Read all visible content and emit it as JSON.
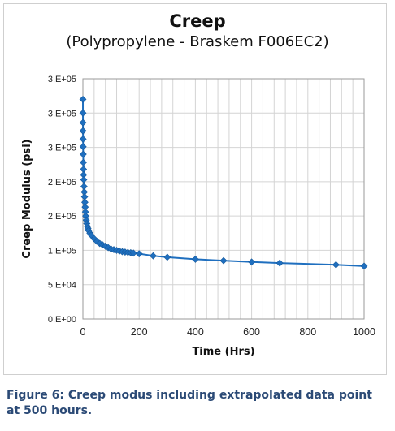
{
  "chart_data": {
    "type": "line",
    "title": "Creep",
    "subtitle": "(Polypropylene - Braskem F006EC2)",
    "xlabel": "Time (Hrs)",
    "ylabel": "Creep Modulus (psi)",
    "xlim": [
      0,
      1000
    ],
    "ylim": [
      0,
      350000
    ],
    "x_ticks": [
      0,
      200,
      400,
      600,
      800,
      1000
    ],
    "x_tick_labels": [
      "0",
      "200",
      "400",
      "600",
      "800",
      "1000"
    ],
    "y_ticks": [
      0,
      50000,
      100000,
      150000,
      200000,
      250000,
      300000,
      350000
    ],
    "y_tick_labels": [
      "0.E+00",
      "5.E+04",
      "1.E+05",
      "2.E+05",
      "2.E+05",
      "3.E+05",
      "3.E+05",
      "3.E+05"
    ],
    "grid": true,
    "marker": "diamond",
    "line_color": "#1f6fbf",
    "series": [
      {
        "x": [
          0.05,
          0.1,
          0.2,
          0.3,
          0.5,
          0.7,
          1,
          1.5,
          2,
          2.5,
          3,
          4,
          5,
          6,
          7,
          8,
          9,
          10,
          12,
          14,
          16,
          18,
          20,
          25,
          30,
          40,
          50,
          60,
          70,
          80,
          90,
          100,
          110,
          120,
          130,
          140,
          150,
          160,
          170,
          180,
          200,
          250,
          300,
          400,
          500,
          600,
          700,
          900,
          1000
        ],
        "y": [
          320000,
          300000,
          286000,
          274000,
          262000,
          251000,
          240000,
          228000,
          218000,
          210000,
          203000,
          193000,
          185000,
          178000,
          170000,
          163000,
          156000,
          150000,
          144000,
          139000,
          135000,
          132000,
          129000,
          125000,
          122000,
          117000,
          113000,
          110000,
          108000,
          106000,
          104000,
          102000,
          101000,
          100000,
          99000,
          98000,
          97500,
          97000,
          96500,
          96000,
          95000,
          92000,
          90000,
          87000,
          85000,
          83000,
          81500,
          79000,
          77000
        ]
      }
    ]
  },
  "caption": "Figure 6: Creep modus including extrapolated data point at 500 hours."
}
